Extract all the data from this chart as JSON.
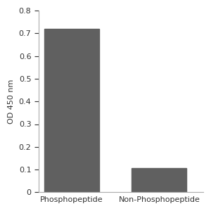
{
  "categories": [
    "Phosphopeptide",
    "Non-Phosphopeptide"
  ],
  "values": [
    0.72,
    0.105
  ],
  "bar_color": "#606060",
  "ylabel": "OD 450 nm",
  "ylim": [
    0,
    0.8
  ],
  "yticks": [
    0,
    0.1,
    0.2,
    0.3,
    0.4,
    0.5,
    0.6,
    0.7,
    0.8
  ],
  "bar_width": 0.5,
  "background_color": "#ffffff",
  "tick_fontsize": 8,
  "label_fontsize": 8,
  "bar_positions": [
    0.3,
    1.1
  ],
  "xlim": [
    0.0,
    1.5
  ]
}
